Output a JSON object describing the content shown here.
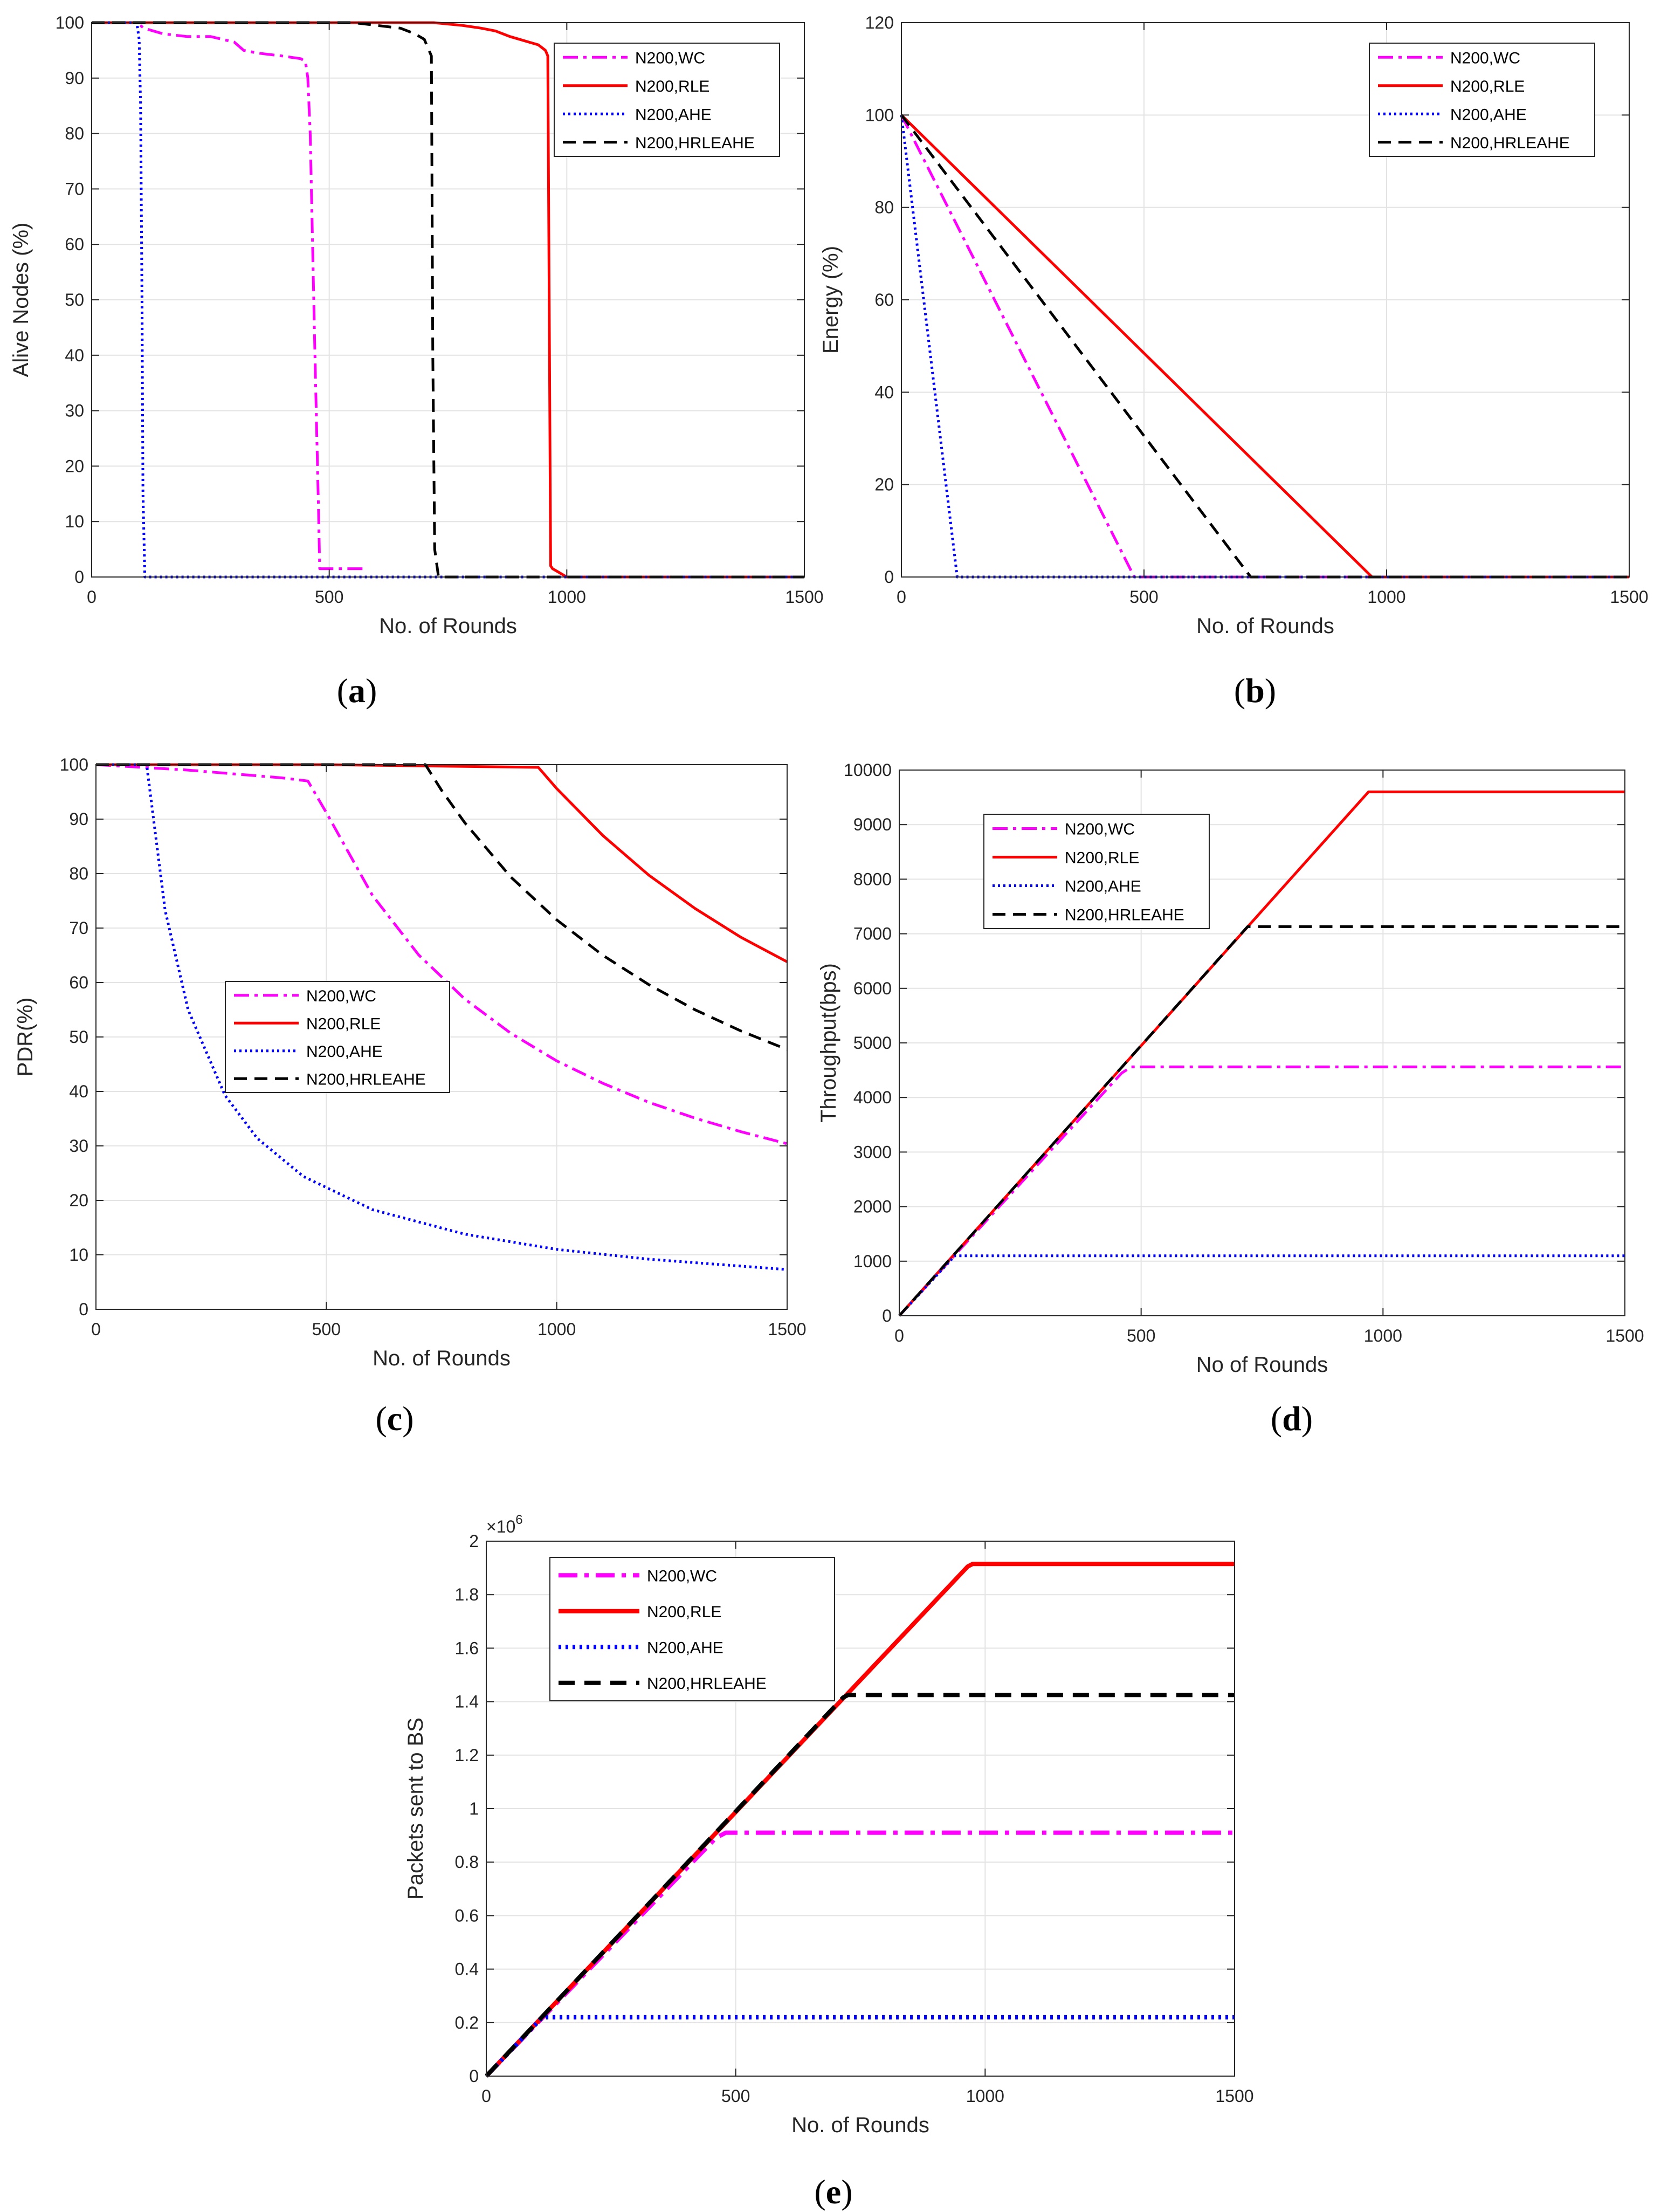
{
  "series_styles": [
    {
      "key": "wc",
      "color": "#ff00ff",
      "dash": "28 10 6 10"
    },
    {
      "key": "rle",
      "color": "#ff0000",
      "dash": ""
    },
    {
      "key": "ahe",
      "color": "#0000ff",
      "dash": "4 6"
    },
    {
      "key": "hrleahe",
      "color": "#000000",
      "dash": "24 14"
    }
  ],
  "chart_data": [
    {
      "id": "a",
      "type": "line",
      "caption_letter": "a",
      "xlabel": "No. of Rounds",
      "ylabel": "Alive Nodes (%)",
      "xlim": [
        0,
        1500
      ],
      "ylim": [
        0,
        100
      ],
      "xticks": [
        "0",
        "500",
        "1000",
        "1500"
      ],
      "yticks": [
        "0",
        "10",
        "20",
        "30",
        "40",
        "50",
        "60",
        "70",
        "80",
        "90",
        "100"
      ],
      "legend_position": "top-right",
      "legend": [
        "N200,WC",
        "N200,RLE",
        "N200,AHE",
        "N200,HRLEAHE"
      ],
      "series": [
        {
          "name": "N200,WC",
          "x": [
            0,
            95,
            110,
            150,
            200,
            250,
            300,
            320,
            350,
            400,
            440,
            450,
            455,
            460,
            465,
            470,
            478,
            480,
            500,
            550,
            580
          ],
          "y": [
            100,
            100,
            99,
            98,
            97.5,
            97.5,
            96.5,
            95,
            94.5,
            94,
            93.5,
            93,
            90,
            80,
            60,
            40,
            10,
            1.5,
            1.5,
            1.5,
            1.5
          ]
        },
        {
          "name": "N200,RLE",
          "x": [
            0,
            720,
            780,
            820,
            850,
            880,
            900,
            920,
            940,
            955,
            960,
            963,
            966,
            970,
            980,
            1000,
            1500
          ],
          "y": [
            100,
            100,
            99.5,
            99,
            98.5,
            97.5,
            97,
            96.5,
            96,
            95,
            94,
            50,
            2,
            1.5,
            1,
            0,
            0
          ],
          "x_tail_start": 980
        },
        {
          "name": "N200,AHE",
          "x": [
            0,
            95,
            100,
            103,
            106,
            108,
            112,
            1500
          ],
          "y": [
            100,
            100,
            97,
            85,
            50,
            15,
            0,
            0
          ]
        },
        {
          "name": "N200,HRLEAHE",
          "x": [
            0,
            550,
            600,
            650,
            680,
            700,
            715,
            718,
            722,
            730,
            1500
          ],
          "y": [
            100,
            100,
            99.5,
            99,
            98,
            97,
            94,
            40,
            5,
            0,
            0
          ]
        }
      ]
    },
    {
      "id": "b",
      "type": "line",
      "caption_letter": "b",
      "xlabel": "No. of Rounds",
      "ylabel": "Energy (%)",
      "xlim": [
        0,
        1500
      ],
      "ylim": [
        0,
        120
      ],
      "xticks": [
        "0",
        "500",
        "1000",
        "1500"
      ],
      "yticks": [
        "0",
        "20",
        "40",
        "60",
        "80",
        "100",
        "120"
      ],
      "legend_position": "top-right",
      "legend": [
        "N200,WC",
        "N200,RLE",
        "N200,AHE",
        "N200,HRLEAHE"
      ],
      "series": [
        {
          "name": "N200,WC",
          "x": [
            0,
            480,
            1500
          ],
          "y": [
            100,
            0,
            0
          ]
        },
        {
          "name": "N200,RLE",
          "x": [
            0,
            970,
            1500
          ],
          "y": [
            100,
            0,
            0
          ]
        },
        {
          "name": "N200,AHE",
          "x": [
            0,
            115,
            1500
          ],
          "y": [
            100,
            0,
            0
          ]
        },
        {
          "name": "N200,HRLEAHE",
          "x": [
            0,
            720,
            1500
          ],
          "y": [
            100,
            0,
            0
          ]
        }
      ]
    },
    {
      "id": "c",
      "type": "line",
      "caption_letter": "c",
      "xlabel": "No. of Rounds",
      "ylabel": "PDR(%)",
      "xlim": [
        0,
        1500
      ],
      "ylim": [
        0,
        100
      ],
      "xticks": [
        "0",
        "500",
        "1000",
        "1500"
      ],
      "yticks": [
        "0",
        "10",
        "20",
        "30",
        "40",
        "50",
        "60",
        "70",
        "80",
        "90",
        "100"
      ],
      "legend_position": "center-left",
      "legend": [
        "N200,WC",
        "N200,RLE",
        "N200,AHE",
        "N200,HRLEAHE"
      ],
      "series": [
        {
          "name": "N200,WC",
          "x": [
            0,
            100,
            200,
            300,
            400,
            460,
            500,
            600,
            700,
            800,
            900,
            1000,
            1100,
            1200,
            1300,
            1400,
            1500
          ],
          "y": [
            100,
            99.5,
            99,
            98.3,
            97.6,
            97,
            91.2,
            76,
            65.1,
            57,
            50.7,
            45.6,
            41.5,
            38,
            35.1,
            32.6,
            30.4
          ]
        },
        {
          "name": "N200,RLE",
          "x": [
            0,
            500,
            960,
            1000,
            1100,
            1200,
            1300,
            1400,
            1500
          ],
          "y": [
            100,
            100,
            99.5,
            95.6,
            87,
            79.7,
            73.6,
            68.3,
            63.8
          ]
        },
        {
          "name": "N200,AHE",
          "x": [
            0,
            110,
            150,
            200,
            280,
            350,
            450,
            600,
            800,
            1000,
            1200,
            1500
          ],
          "y": [
            100,
            100,
            73.3,
            55,
            39.3,
            31.4,
            24.4,
            18.3,
            13.8,
            11,
            9.2,
            7.3
          ]
        },
        {
          "name": "N200,HRLEAHE",
          "x": [
            0,
            300,
            500,
            715,
            750,
            800,
            900,
            1000,
            1100,
            1200,
            1300,
            1400,
            1500
          ],
          "y": [
            100,
            100,
            100,
            100,
            95.3,
            89.4,
            79.4,
            71.5,
            65,
            59.6,
            55,
            51.1,
            47.7
          ]
        }
      ]
    },
    {
      "id": "d",
      "type": "line",
      "caption_letter": "d",
      "xlabel": "No of Rounds",
      "ylabel": "Throughput(bps)",
      "xlim": [
        0,
        1500
      ],
      "ylim": [
        0,
        10000
      ],
      "xticks": [
        "0",
        "500",
        "1000",
        "1500"
      ],
      "yticks": [
        "0",
        "1000",
        "2000",
        "3000",
        "4000",
        "5000",
        "6000",
        "7000",
        "8000",
        "9000",
        "10000"
      ],
      "legend_position": "top-left",
      "legend": [
        "N200,WC",
        "N200,RLE",
        "N200,AHE",
        "N200,HRLEAHE"
      ],
      "series": [
        {
          "name": "N200,WC",
          "x": [
            0,
            460,
            480,
            1500
          ],
          "y": [
            0,
            4450,
            4560,
            4560
          ]
        },
        {
          "name": "N200,RLE",
          "x": [
            0,
            970,
            1500
          ],
          "y": [
            0,
            9600,
            9600
          ]
        },
        {
          "name": "N200,AHE",
          "x": [
            0,
            115,
            1500
          ],
          "y": [
            0,
            1100,
            1100
          ]
        },
        {
          "name": "N200,HRLEAHE",
          "x": [
            0,
            720,
            1500
          ],
          "y": [
            0,
            7130,
            7130
          ]
        }
      ]
    },
    {
      "id": "e",
      "type": "line",
      "caption_letter": "e",
      "xlabel": "No. of Rounds",
      "ylabel": "Packets sent to BS",
      "xlim": [
        0,
        1500
      ],
      "ylim": [
        0,
        2
      ],
      "xticks": [
        "0",
        "500",
        "1000",
        "1500"
      ],
      "yticks": [
        "0",
        "0.2",
        "0.4",
        "0.6",
        "0.8",
        "1",
        "1.2",
        "1.4",
        "1.6",
        "1.8",
        "2"
      ],
      "y_exponent": "×10",
      "y_exponent_power": "6",
      "legend_position": "top-left",
      "legend": [
        "N200,WC",
        "N200,RLE",
        "N200,AHE",
        "N200,HRLEAHE"
      ],
      "series": [
        {
          "name": "N200,WC",
          "x": [
            0,
            460,
            480,
            1500
          ],
          "y": [
            0,
            0.89,
            0.91,
            0.91
          ]
        },
        {
          "name": "N200,RLE",
          "x": [
            0,
            965,
            975,
            1500
          ],
          "y": [
            0,
            1.905,
            1.915,
            1.915
          ]
        },
        {
          "name": "N200,AHE",
          "x": [
            0,
            110,
            120,
            1500
          ],
          "y": [
            0,
            0.215,
            0.22,
            0.22
          ]
        },
        {
          "name": "N200,HRLEAHE",
          "x": [
            0,
            715,
            725,
            1500
          ],
          "y": [
            0,
            1.415,
            1.425,
            1.425
          ]
        }
      ]
    }
  ]
}
